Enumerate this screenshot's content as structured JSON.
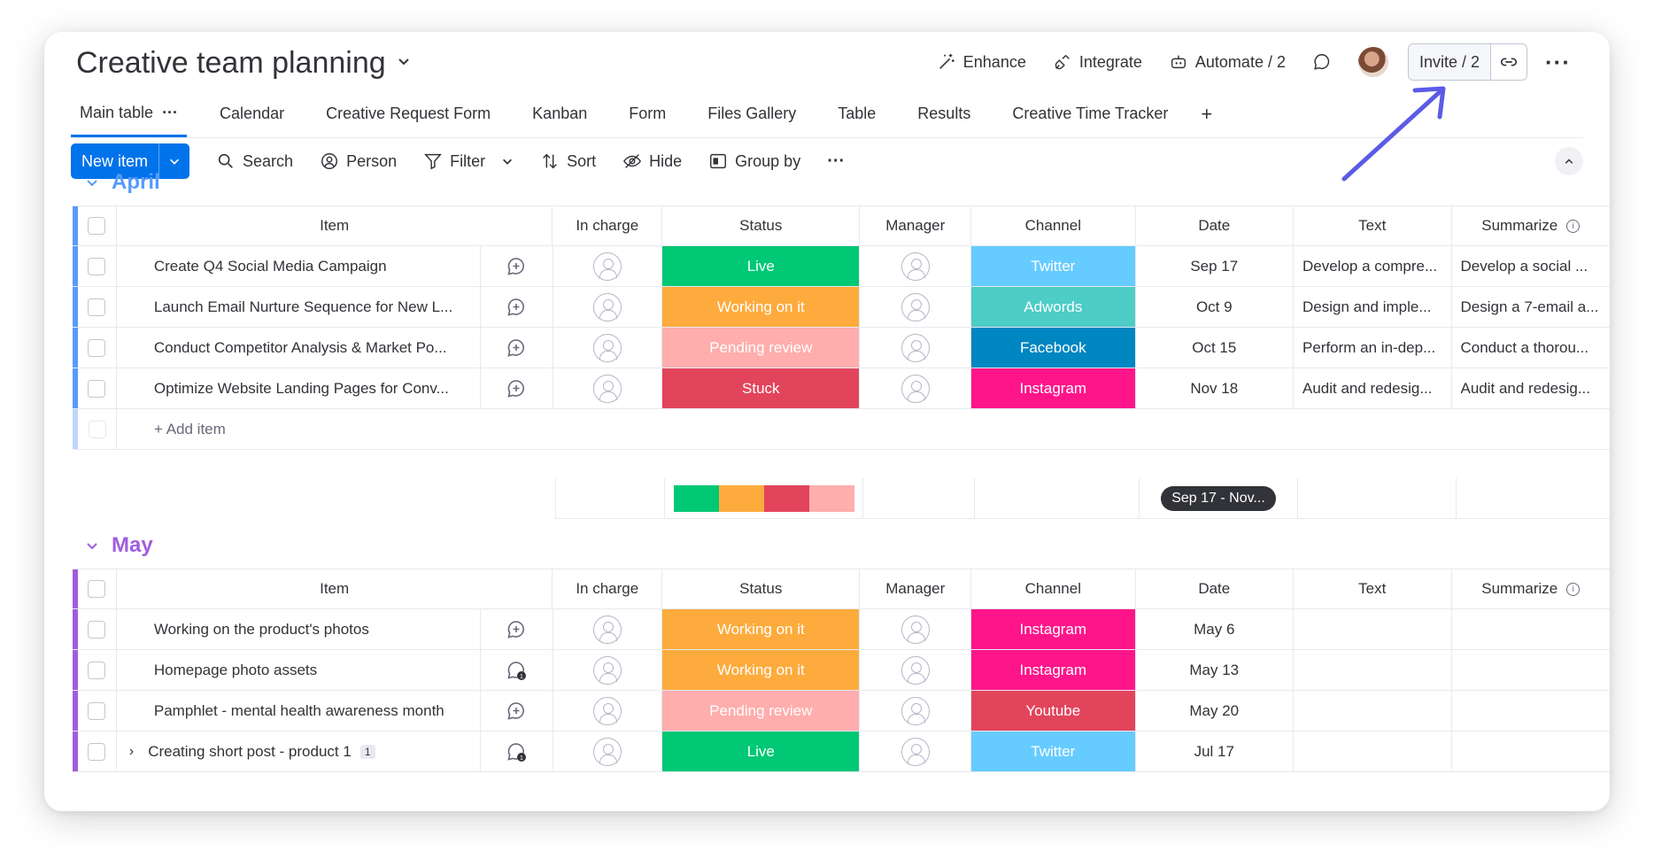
{
  "board": {
    "title": "Creative team planning"
  },
  "header": {
    "enhance": "Enhance",
    "integrate": "Integrate",
    "automate": "Automate / 2",
    "invite": "Invite / 2"
  },
  "tabs": [
    {
      "label": "Main table"
    },
    {
      "label": "Calendar"
    },
    {
      "label": "Creative Request Form"
    },
    {
      "label": "Kanban"
    },
    {
      "label": "Form"
    },
    {
      "label": "Files Gallery"
    },
    {
      "label": "Table"
    },
    {
      "label": "Results"
    },
    {
      "label": "Creative Time Tracker"
    }
  ],
  "tab_add": "+",
  "toolbar": {
    "new_item": "New item",
    "search": "Search",
    "person": "Person",
    "filter": "Filter",
    "sort": "Sort",
    "hide": "Hide",
    "group_by": "Group by"
  },
  "columns": {
    "item": "Item",
    "in_charge": "In charge",
    "status": "Status",
    "manager": "Manager",
    "channel": "Channel",
    "date": "Date",
    "text": "Text",
    "summarize": "Summarize"
  },
  "colors": {
    "live": "#00c875",
    "working": "#fdab3d",
    "pending": "#ffadad",
    "stuck": "#e2445c",
    "twitter": "#66ccff",
    "adwords": "#4eccc6",
    "facebook": "#0086c0",
    "instagram": "#ff158a",
    "youtube": "#e2445c",
    "april": "#579bfc",
    "may": "#a25ddc",
    "accent": "#0073ea"
  },
  "groups": {
    "april": {
      "title": "April",
      "add_item": "+ Add item",
      "date_range": "Sep 17 - Nov...",
      "rows": [
        {
          "item": "Create Q4 Social Media Campaign",
          "status": "Live",
          "status_color": "#00c875",
          "channel": "Twitter",
          "channel_color": "#66ccff",
          "date": "Sep 17",
          "text": "Develop a compre...",
          "summarize": "Develop a social ..."
        },
        {
          "item": "Launch Email Nurture Sequence for New L...",
          "status": "Working on it",
          "status_color": "#fdab3d",
          "channel": "Adwords",
          "channel_color": "#4eccc6",
          "date": "Oct 9",
          "text": "Design and imple...",
          "summarize": "Design a 7-email a..."
        },
        {
          "item": "Conduct Competitor Analysis & Market Po...",
          "status": "Pending review",
          "status_color": "#ffadad",
          "channel": "Facebook",
          "channel_color": "#0086c0",
          "date": "Oct 15",
          "text": "Perform an in-dep...",
          "summarize": "Conduct a thorou..."
        },
        {
          "item": "Optimize Website Landing Pages for Conv...",
          "status": "Stuck",
          "status_color": "#e2445c",
          "channel": "Instagram",
          "channel_color": "#ff158a",
          "date": "Nov 18",
          "text": "Audit and redesig...",
          "summarize": "Audit and redesig..."
        }
      ]
    },
    "may": {
      "title": "May",
      "rows": [
        {
          "item": "Working on the product's photos",
          "status": "Working on it",
          "status_color": "#fdab3d",
          "channel": "Instagram",
          "channel_color": "#ff158a",
          "date": "May 6",
          "text": "",
          "summarize": ""
        },
        {
          "item": "Homepage photo assets",
          "status": "Working on it",
          "status_color": "#fdab3d",
          "channel": "Instagram",
          "channel_color": "#ff158a",
          "date": "May 13",
          "text": "",
          "summarize": "",
          "updates": "1"
        },
        {
          "item": "Pamphlet - mental health awareness month",
          "status": "Pending review",
          "status_color": "#ffadad",
          "channel": "Youtube",
          "channel_color": "#e2445c",
          "date": "May 20",
          "text": "",
          "summarize": ""
        },
        {
          "item": "Creating short post - product 1",
          "subitems": "1",
          "status": "Live",
          "status_color": "#00c875",
          "channel": "Twitter",
          "channel_color": "#66ccff",
          "date": "Jul 17",
          "text": "",
          "summarize": "",
          "updates": "1"
        }
      ]
    }
  }
}
